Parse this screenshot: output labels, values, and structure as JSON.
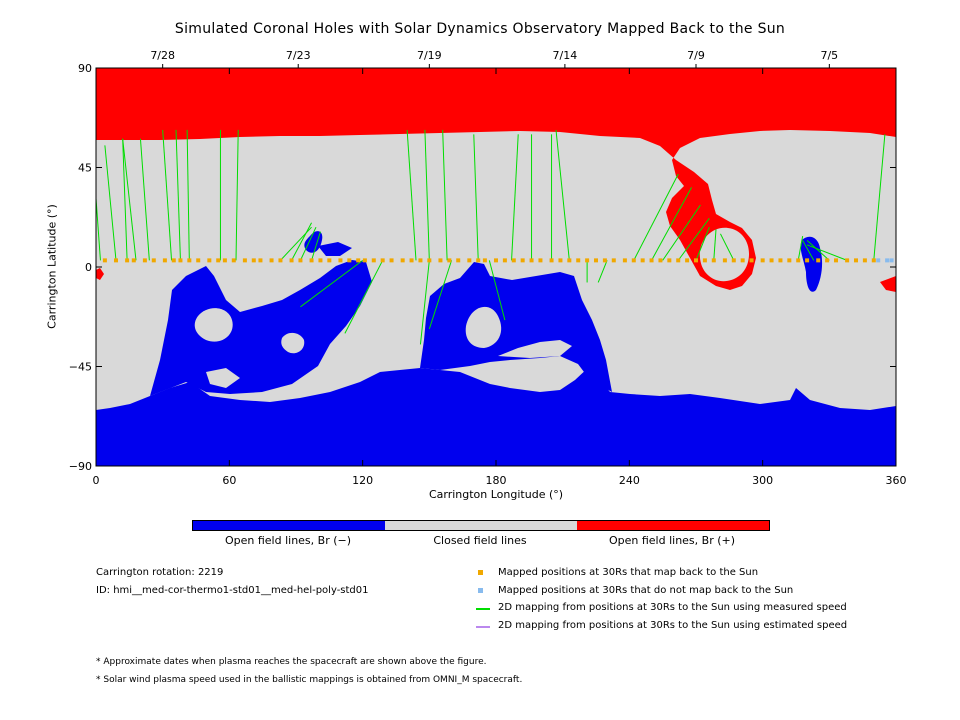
{
  "chart_data": {
    "type": "map",
    "title": "Simulated Coronal Holes with Solar Dynamics Observatory Mapped Back to the Sun",
    "xlabel": "Carrington Longitude (°)",
    "ylabel": "Carrington Latitude (°)",
    "xlim": [
      0,
      360
    ],
    "ylim": [
      -90,
      90
    ],
    "x_ticks": [
      "0",
      "60",
      "120",
      "180",
      "240",
      "300",
      "360"
    ],
    "y_ticks": [
      "90",
      "45",
      "0",
      "-45",
      "-90"
    ],
    "top_dates": [
      {
        "label": "7/28",
        "lon": 30
      },
      {
        "label": "7/23",
        "lon": 91
      },
      {
        "label": "7/19",
        "lon": 150
      },
      {
        "label": "7/14",
        "lon": 211
      },
      {
        "label": "7/9",
        "lon": 270
      },
      {
        "label": "7/5",
        "lon": 330
      }
    ],
    "colorbar": [
      {
        "label": "Open field lines, Br (−)",
        "color": "#0000ee"
      },
      {
        "label": "Closed field lines",
        "color": "#d9d9d9"
      },
      {
        "label": "Open field lines, Br (+)",
        "color": "#ff0000"
      }
    ],
    "colors": {
      "negative_open": "#0000ee",
      "closed": "#d9d9d9",
      "positive_open": "#ff0000",
      "mapped_back": "#f0a800",
      "not_mapped_back": "#88bbee",
      "measured_speed": "#00dd00",
      "estimated_speed": "#bb88ee"
    },
    "mapped_points_lat": 3,
    "mapped_points_lon": [
      4,
      9,
      14,
      17,
      22,
      26,
      31,
      35,
      38,
      42,
      46,
      51,
      55,
      58,
      62,
      67,
      71,
      74,
      79,
      83,
      88,
      92,
      97,
      101,
      105,
      110,
      114,
      118,
      121,
      125,
      129,
      133,
      138,
      142,
      146,
      150,
      155,
      159,
      163,
      168,
      172,
      175,
      180,
      184,
      188,
      192,
      196,
      200,
      205,
      209,
      213,
      217,
      221,
      225,
      229,
      233,
      238,
      242,
      246,
      250,
      254,
      258,
      262,
      266,
      270,
      274,
      278,
      283,
      287,
      291,
      295,
      300,
      304,
      308,
      312,
      316,
      320,
      325,
      329,
      333,
      338,
      342,
      346,
      350
    ],
    "not_mapped_points_lon": [
      352,
      356,
      358
    ],
    "field_lines": [
      {
        "from": [
          2,
          3
        ],
        "to": [
          0,
          31
        ]
      },
      {
        "from": [
          9,
          3
        ],
        "to": [
          4,
          55
        ]
      },
      {
        "from": [
          14,
          3
        ],
        "to": [
          12,
          58
        ]
      },
      {
        "from": [
          18,
          3
        ],
        "to": [
          12,
          58
        ]
      },
      {
        "from": [
          24,
          3
        ],
        "to": [
          20,
          58
        ]
      },
      {
        "from": [
          34,
          3
        ],
        "to": [
          30,
          62
        ]
      },
      {
        "from": [
          38,
          3
        ],
        "to": [
          36,
          62
        ]
      },
      {
        "from": [
          42,
          3
        ],
        "to": [
          41,
          62
        ]
      },
      {
        "from": [
          56,
          3
        ],
        "to": [
          56,
          62
        ]
      },
      {
        "from": [
          63,
          3
        ],
        "to": [
          64,
          62
        ]
      },
      {
        "from": [
          83,
          3
        ],
        "to": [
          97,
          18
        ]
      },
      {
        "from": [
          88,
          3
        ],
        "to": [
          97,
          20
        ]
      },
      {
        "from": [
          92,
          3
        ],
        "to": [
          99,
          18
        ]
      },
      {
        "from": [
          97,
          3
        ],
        "to": [
          101,
          16
        ]
      },
      {
        "from": [
          144,
          3
        ],
        "to": [
          140,
          62
        ]
      },
      {
        "from": [
          150,
          3
        ],
        "to": [
          148,
          62
        ]
      },
      {
        "from": [
          158,
          3
        ],
        "to": [
          156,
          62
        ]
      },
      {
        "from": [
          172,
          3
        ],
        "to": [
          170,
          60
        ]
      },
      {
        "from": [
          187,
          3
        ],
        "to": [
          190,
          60
        ]
      },
      {
        "from": [
          196,
          3
        ],
        "to": [
          196,
          60
        ]
      },
      {
        "from": [
          205,
          3
        ],
        "to": [
          205,
          60
        ]
      },
      {
        "from": [
          213,
          3
        ],
        "to": [
          207,
          62
        ]
      },
      {
        "from": [
          242,
          3
        ],
        "to": [
          262,
          42
        ]
      },
      {
        "from": [
          250,
          3
        ],
        "to": [
          268,
          36
        ]
      },
      {
        "from": [
          255,
          3
        ],
        "to": [
          272,
          28
        ]
      },
      {
        "from": [
          262,
          3
        ],
        "to": [
          276,
          22
        ]
      },
      {
        "from": [
          270,
          3
        ],
        "to": [
          276,
          18
        ]
      },
      {
        "from": [
          278,
          3
        ],
        "to": [
          279,
          17
        ]
      },
      {
        "from": [
          287,
          3
        ],
        "to": [
          281,
          15
        ]
      },
      {
        "from": [
          316,
          3
        ],
        "to": [
          318,
          14
        ]
      },
      {
        "from": [
          323,
          3
        ],
        "to": [
          318,
          12
        ]
      },
      {
        "from": [
          330,
          3
        ],
        "to": [
          320,
          12
        ]
      },
      {
        "from": [
          338,
          3
        ],
        "to": [
          320,
          10
        ]
      },
      {
        "from": [
          350,
          3
        ],
        "to": [
          355,
          60
        ]
      },
      {
        "from": [
          120,
          3
        ],
        "to": [
          92,
          -18
        ]
      },
      {
        "from": [
          129,
          3
        ],
        "to": [
          112,
          -30
        ]
      },
      {
        "from": [
          150,
          3
        ],
        "to": [
          146,
          -35
        ]
      },
      {
        "from": [
          160,
          3
        ],
        "to": [
          150,
          -28
        ]
      },
      {
        "from": [
          177,
          3
        ],
        "to": [
          184,
          -24
        ]
      },
      {
        "from": [
          221,
          3
        ],
        "to": [
          221,
          -7
        ]
      },
      {
        "from": [
          230,
          3
        ],
        "to": [
          226,
          -7
        ]
      }
    ],
    "regions_description": "See SVG shapes"
  },
  "colorbar_labels": [
    "Open field lines, Br (−)",
    "Closed field lines",
    "Open field lines, Br (+)"
  ],
  "info": {
    "rotation": "Carrington rotation: 2219",
    "id": "ID: hmi__med-cor-thermo1-std01__med-hel-poly-std01"
  },
  "legend": [
    {
      "label": "Mapped positions at 30Rs that map back to the Sun",
      "kind": "square",
      "color": "#f0a800"
    },
    {
      "label": "Mapped positions at 30Rs that do not map back to the Sun",
      "kind": "square",
      "color": "#88bbee"
    },
    {
      "label": "2D mapping from positions at 30Rs to the Sun using measured speed",
      "kind": "line",
      "color": "#00dd00"
    },
    {
      "label": "2D mapping from positions at 30Rs to the Sun using estimated speed",
      "kind": "line",
      "color": "#bb88ee"
    }
  ],
  "notes": [
    "* Approximate dates when plasma reaches the spacecraft are shown above the figure.",
    "* Solar wind plasma speed used in the ballistic mappings is obtained from OMNI_M spacecraft."
  ]
}
